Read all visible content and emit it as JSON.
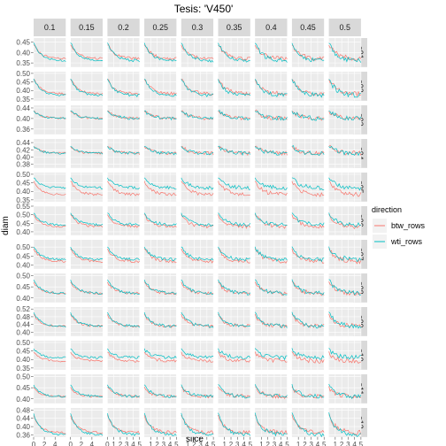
{
  "chart_data": {
    "type": "line",
    "title": "Tesis: 'V450'",
    "xlabel": "slice",
    "ylabel": "diam",
    "legend": {
      "title": "direction",
      "position": "right",
      "entries": [
        "btw_rows",
        "wti_rows"
      ]
    },
    "colors": {
      "btw_rows": "#F8766D",
      "wti_rows": "#00BFC4"
    },
    "panel_background": "#EBEBEB",
    "strip_background": "#D9D9D9",
    "grid": true,
    "facet_columns": [
      "0.1",
      "0.15",
      "0.2",
      "0.25",
      "0.3",
      "0.35",
      "0.4",
      "0.45",
      "0.5"
    ],
    "facet_rows": [
      "s01",
      "s02",
      "s03",
      "s04",
      "s05",
      "s06",
      "s07",
      "s08",
      "s09",
      "s10",
      "s11",
      "s12"
    ],
    "column_xlim": [
      [
        0,
        6
      ],
      [
        0,
        6
      ],
      [
        0,
        5
      ],
      [
        0,
        5
      ],
      [
        0,
        5
      ],
      [
        0,
        5
      ],
      [
        0,
        5
      ],
      [
        0,
        5
      ],
      [
        0,
        5
      ]
    ],
    "column_x_ticks": [
      [
        "0",
        "2",
        "4"
      ],
      [
        "0",
        "2",
        "4"
      ],
      [
        "0",
        "1",
        "2",
        "3",
        "4",
        "5"
      ],
      [
        "1",
        "2",
        "3",
        "4",
        "5"
      ],
      [
        "1",
        "2",
        "3",
        "4",
        "5"
      ],
      [
        "1",
        "2",
        "3",
        "4",
        "5"
      ],
      [
        "1",
        "2",
        "3",
        "4",
        "5"
      ],
      [
        "1",
        "2",
        "3",
        "4",
        "5"
      ],
      [
        "1",
        "2",
        "3",
        "4",
        "5"
      ]
    ],
    "row_ylim": [
      [
        0.33,
        0.47
      ],
      [
        0.34,
        0.51
      ],
      [
        0.34,
        0.45
      ],
      [
        0.37,
        0.45
      ],
      [
        0.34,
        0.51
      ],
      [
        0.38,
        0.55
      ],
      [
        0.38,
        0.54
      ],
      [
        0.38,
        0.51
      ],
      [
        0.38,
        0.53
      ],
      [
        0.34,
        0.51
      ],
      [
        0.38,
        0.51
      ],
      [
        0.35,
        0.49
      ]
    ],
    "row_y_ticks": [
      [
        "0.45",
        "0.40",
        "0.35"
      ],
      [
        "0.50",
        "0.45",
        "0.40",
        "0.35"
      ],
      [
        "0.44",
        "0.40",
        "0.36"
      ],
      [
        "0.44",
        "0.42",
        "0.40",
        "0.38"
      ],
      [
        "0.50",
        "0.45",
        "0.40",
        "0.35"
      ],
      [
        "0.55",
        "0.50",
        "0.45",
        "0.40"
      ],
      [
        "0.50",
        "0.45",
        "0.40"
      ],
      [
        "0.50",
        "0.45",
        "0.40"
      ],
      [
        "0.52",
        "0.48",
        "0.44",
        "0.40"
      ],
      [
        "0.50",
        "0.45",
        "0.40",
        "0.35"
      ],
      [
        "0.50",
        "0.45",
        "0.40"
      ],
      [
        "0.48",
        "0.44",
        "0.40",
        "0.36"
      ]
    ],
    "row_series_levels": {
      "shape": "per row: [btw_start, btw_end, wti_start, wti_end] in data units, approximate",
      "values": [
        [
          0.44,
          0.37,
          0.45,
          0.36
        ],
        [
          0.47,
          0.38,
          0.47,
          0.37
        ],
        [
          0.43,
          0.4,
          0.43,
          0.4
        ],
        [
          0.43,
          0.41,
          0.43,
          0.41
        ],
        [
          0.46,
          0.38,
          0.48,
          0.42
        ],
        [
          0.5,
          0.43,
          0.51,
          0.44
        ],
        [
          0.49,
          0.42,
          0.5,
          0.43
        ],
        [
          0.47,
          0.42,
          0.48,
          0.42
        ],
        [
          0.49,
          0.43,
          0.5,
          0.43
        ],
        [
          0.44,
          0.39,
          0.46,
          0.41
        ],
        [
          0.45,
          0.41,
          0.46,
          0.41
        ],
        [
          0.45,
          0.37,
          0.46,
          0.36
        ]
      ]
    }
  }
}
